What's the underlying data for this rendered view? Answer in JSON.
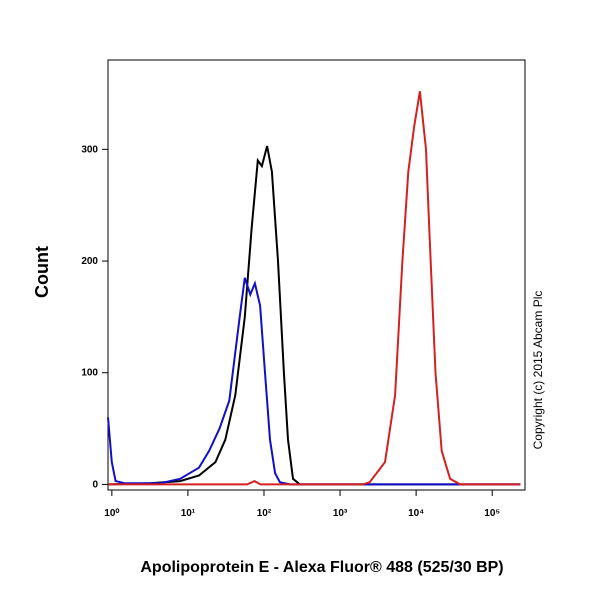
{
  "chart_data": {
    "type": "line",
    "ylabel": "Count",
    "xlabel": "Apolipoprotein E - Alexa Fluor® 488 (525/30 BP)",
    "annotation": "Copyright (c) 2015 Abcam Plc",
    "xscale": "log",
    "xlim": [
      0.89,
      270000
    ],
    "ylim": [
      -5,
      380
    ],
    "xticks": [
      {
        "value": 1,
        "label": "10⁰"
      },
      {
        "value": 10,
        "label": "10¹"
      },
      {
        "value": 100,
        "label": "10²"
      },
      {
        "value": 1000,
        "label": "10³"
      },
      {
        "value": 10000,
        "label": "10⁴"
      },
      {
        "value": 100000,
        "label": "10⁵"
      }
    ],
    "yticks": [
      0,
      100,
      200,
      300
    ],
    "series": [
      {
        "color": "#000000",
        "x": [
          0.89,
          3.2,
          7.9,
          14,
          23,
          31,
          42,
          56,
          69,
          83,
          94,
          110,
          127,
          153,
          183,
          207,
          241,
          297,
          234000
        ],
        "values": [
          0,
          1,
          3,
          8,
          20,
          40,
          80,
          150,
          230,
          290,
          285,
          303,
          280,
          200,
          100,
          40,
          5,
          0,
          0
        ]
      },
      {
        "color": "#1010c8",
        "x": [
          0.89,
          1,
          1.12,
          1.5,
          4.3,
          7.9,
          14,
          19,
          26,
          35,
          48,
          56,
          66,
          76,
          89,
          103,
          120,
          140,
          162,
          220,
          234000
        ],
        "values": [
          60,
          20,
          3,
          1,
          1,
          5,
          15,
          30,
          50,
          75,
          150,
          185,
          170,
          180,
          160,
          100,
          40,
          10,
          2,
          0,
          0
        ]
      },
      {
        "color": "#d42020",
        "x": [
          0.89,
          60,
          75,
          90,
          2000,
          2450,
          3900,
          5300,
          6600,
          7900,
          9400,
          11200,
          13500,
          15100,
          18000,
          21700,
          28000,
          38000,
          234000
        ],
        "values": [
          0,
          0,
          3,
          0,
          0,
          2,
          20,
          80,
          200,
          280,
          320,
          352,
          300,
          220,
          100,
          30,
          5,
          0,
          0
        ]
      }
    ]
  }
}
